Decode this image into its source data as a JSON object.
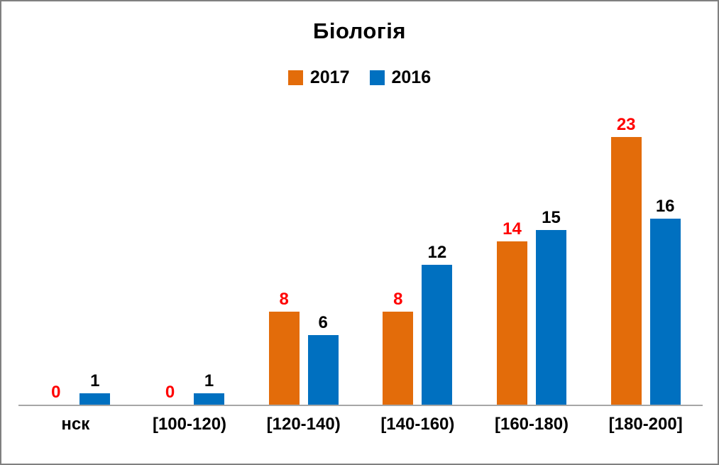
{
  "chart_data": {
    "type": "bar",
    "title": "Біологія",
    "categories": [
      "нск",
      "[100-120)",
      "[120-140)",
      "[140-160)",
      "[160-180)",
      "[180-200]"
    ],
    "series": [
      {
        "name": "2017",
        "color": "#E36C0A",
        "label_color": "#FF0000",
        "values": [
          0,
          0,
          8,
          8,
          14,
          23
        ]
      },
      {
        "name": "2016",
        "color": "#0070C0",
        "label_color": "#000000",
        "values": [
          1,
          1,
          6,
          12,
          15,
          16
        ]
      }
    ],
    "ylim": [
      0,
      26
    ],
    "grid": false,
    "legend_position": "top",
    "axis_line_color": "#A6A6A6",
    "frame_border_color": "#808080"
  }
}
